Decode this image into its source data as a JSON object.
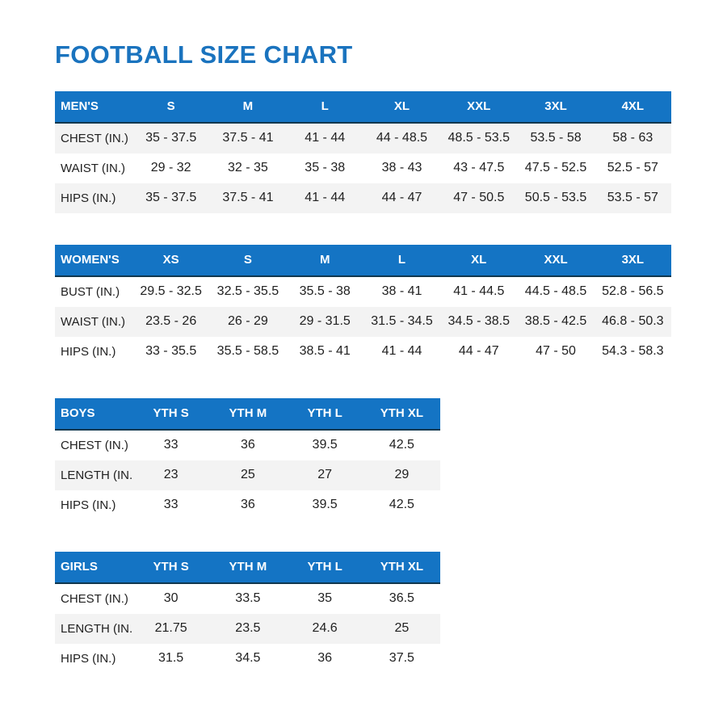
{
  "page": {
    "title": "FOOTBALL SIZE CHART"
  },
  "colors": {
    "title": "#1a73be",
    "header_bg": "#1474c4",
    "header_text": "#ffffff",
    "header_border": "#10374f",
    "row_shade": "#f3f3f3",
    "body_text": "#212121"
  },
  "tables": [
    {
      "id": "mens",
      "columns": [
        "MEN'S",
        "S",
        "M",
        "L",
        "XL",
        "XXL",
        "3XL",
        "4XL"
      ],
      "rows": [
        {
          "label": "CHEST (IN.)",
          "values": [
            "35 - 37.5",
            "37.5 - 41",
            "41 - 44",
            "44 - 48.5",
            "48.5 - 53.5",
            "53.5 - 58",
            "58 - 63"
          ]
        },
        {
          "label": "WAIST (IN.)",
          "values": [
            "29 - 32",
            "32 - 35",
            "35 - 38",
            "38 - 43",
            "43 - 47.5",
            "47.5 - 52.5",
            "52.5 - 57"
          ]
        },
        {
          "label": "HIPS (IN.)",
          "values": [
            "35 - 37.5",
            "37.5 - 41",
            "41 - 44",
            "44 - 47",
            "47 - 50.5",
            "50.5 - 53.5",
            "53.5 - 57"
          ]
        }
      ]
    },
    {
      "id": "womens",
      "columns": [
        "WOMEN'S",
        "XS",
        "S",
        "M",
        "L",
        "XL",
        "XXL",
        "3XL"
      ],
      "rows": [
        {
          "label": "BUST (IN.)",
          "values": [
            "29.5 - 32.5",
            "32.5 - 35.5",
            "35.5 - 38",
            "38 - 41",
            "41 - 44.5",
            "44.5 - 48.5",
            "52.8 - 56.5"
          ]
        },
        {
          "label": "WAIST (IN.)",
          "values": [
            "23.5 - 26",
            "26 - 29",
            "29 - 31.5",
            "31.5 - 34.5",
            "34.5 - 38.5",
            "38.5 - 42.5",
            "46.8 - 50.3"
          ]
        },
        {
          "label": "HIPS (IN.)",
          "values": [
            "33 - 35.5",
            "35.5 - 58.5",
            "38.5 - 41",
            "41 - 44",
            "44 - 47",
            "47 - 50",
            "54.3 - 58.3"
          ]
        }
      ]
    },
    {
      "id": "boys",
      "columns": [
        "BOYS",
        "YTH S",
        "YTH M",
        "YTH L",
        "YTH XL"
      ],
      "rows": [
        {
          "label": "CHEST (IN.)",
          "values": [
            "33",
            "36",
            "39.5",
            "42.5"
          ]
        },
        {
          "label": "LENGTH (IN.)",
          "values": [
            "23",
            "25",
            "27",
            "29"
          ]
        },
        {
          "label": "HIPS (IN.)",
          "values": [
            "33",
            "36",
            "39.5",
            "42.5"
          ]
        }
      ]
    },
    {
      "id": "girls",
      "columns": [
        "GIRLS",
        "YTH S",
        "YTH M",
        "YTH L",
        "YTH XL"
      ],
      "rows": [
        {
          "label": "CHEST (IN.)",
          "values": [
            "30",
            "33.5",
            "35",
            "36.5"
          ]
        },
        {
          "label": "LENGTH (IN.)",
          "values": [
            "21.75",
            "23.5",
            "24.6",
            "25"
          ]
        },
        {
          "label": "HIPS (IN.)",
          "values": [
            "31.5",
            "34.5",
            "36",
            "37.5"
          ]
        }
      ]
    }
  ]
}
